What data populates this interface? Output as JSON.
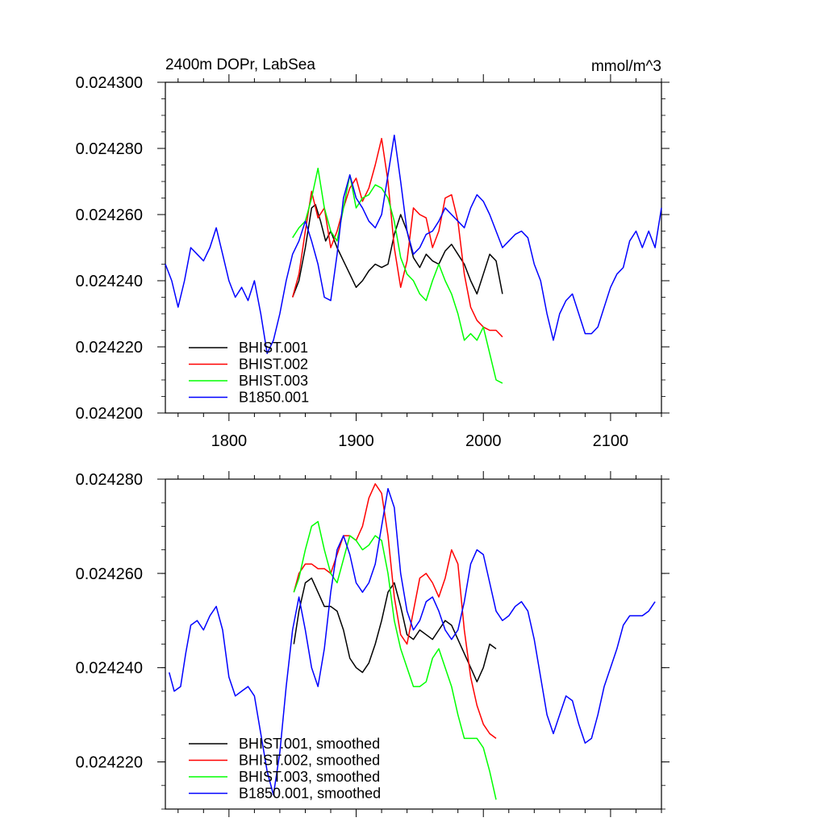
{
  "chart_data": [
    {
      "type": "line",
      "title": "2400m DOPr, LabSea",
      "units": "mmol/m^3",
      "xlim": [
        1750,
        2140
      ],
      "ylim": [
        0.0242,
        0.0243
      ],
      "x_ticks": [
        1800,
        1900,
        2000,
        2100
      ],
      "y_ticks": [
        0.0242,
        0.02422,
        0.02424,
        0.02426,
        0.02428,
        0.0243
      ],
      "y_tick_labels": [
        "0.024200",
        "0.024220",
        "0.024240",
        "0.024260",
        "0.024280",
        "0.024300"
      ],
      "x_tick_labels": [
        "1800",
        "1900",
        "2000",
        "2100"
      ],
      "legend_position": "bottom-left",
      "series": [
        {
          "name": "BHIST.001",
          "color": "#000000",
          "x": [
            1850,
            1855,
            1860,
            1865,
            1868,
            1872,
            1876,
            1880,
            1885,
            1890,
            1895,
            1900,
            1905,
            1910,
            1915,
            1920,
            1925,
            1930,
            1935,
            1940,
            1945,
            1950,
            1955,
            1960,
            1965,
            1970,
            1975,
            1980,
            1985,
            1990,
            1995,
            2000,
            2005,
            2010,
            2015
          ],
          "y": [
            0.024235,
            0.02424,
            0.02425,
            0.024262,
            0.024263,
            0.024258,
            0.024252,
            0.024255,
            0.02425,
            0.024246,
            0.024242,
            0.024238,
            0.02424,
            0.024243,
            0.024245,
            0.024244,
            0.024245,
            0.024254,
            0.02426,
            0.024255,
            0.024247,
            0.024244,
            0.024248,
            0.024246,
            0.024245,
            0.024249,
            0.024251,
            0.024248,
            0.024245,
            0.02424,
            0.024236,
            0.024242,
            0.024248,
            0.024246,
            0.024236
          ]
        },
        {
          "name": "BHIST.002",
          "color": "#ff0000",
          "x": [
            1850,
            1855,
            1860,
            1865,
            1870,
            1875,
            1880,
            1885,
            1890,
            1895,
            1900,
            1905,
            1910,
            1915,
            1920,
            1925,
            1930,
            1935,
            1940,
            1945,
            1950,
            1955,
            1960,
            1965,
            1970,
            1975,
            1980,
            1985,
            1990,
            1995,
            2000,
            2005,
            2010,
            2015
          ],
          "y": [
            0.024235,
            0.024242,
            0.024255,
            0.024267,
            0.024259,
            0.024262,
            0.02425,
            0.024255,
            0.024262,
            0.024268,
            0.024271,
            0.024264,
            0.024268,
            0.024275,
            0.024283,
            0.02427,
            0.02425,
            0.024238,
            0.024246,
            0.024262,
            0.02426,
            0.024259,
            0.02425,
            0.024255,
            0.024265,
            0.024266,
            0.024258,
            0.024242,
            0.024232,
            0.024228,
            0.024226,
            0.024225,
            0.024225,
            0.024223
          ]
        },
        {
          "name": "BHIST.003",
          "color": "#00ff00",
          "x": [
            1850,
            1855,
            1860,
            1865,
            1870,
            1875,
            1880,
            1885,
            1890,
            1895,
            1900,
            1905,
            1910,
            1915,
            1920,
            1925,
            1930,
            1935,
            1940,
            1945,
            1950,
            1955,
            1960,
            1965,
            1970,
            1975,
            1980,
            1985,
            1990,
            1995,
            2000,
            2005,
            2010,
            2015
          ],
          "y": [
            0.024253,
            0.024256,
            0.024258,
            0.024265,
            0.024274,
            0.024262,
            0.024255,
            0.024252,
            0.024262,
            0.024272,
            0.024262,
            0.024265,
            0.024266,
            0.024269,
            0.024268,
            0.024265,
            0.024258,
            0.024247,
            0.024242,
            0.02424,
            0.024236,
            0.024234,
            0.02424,
            0.024245,
            0.02424,
            0.024236,
            0.02423,
            0.024222,
            0.024224,
            0.024222,
            0.024226,
            0.024218,
            0.02421,
            0.024209
          ]
        },
        {
          "name": "B1850.001",
          "color": "#0000ff",
          "x": [
            1750,
            1755,
            1760,
            1765,
            1770,
            1775,
            1780,
            1785,
            1790,
            1795,
            1800,
            1805,
            1810,
            1815,
            1820,
            1825,
            1830,
            1835,
            1840,
            1845,
            1850,
            1855,
            1860,
            1865,
            1870,
            1875,
            1880,
            1885,
            1890,
            1895,
            1900,
            1905,
            1910,
            1915,
            1920,
            1925,
            1930,
            1935,
            1940,
            1945,
            1950,
            1955,
            1960,
            1965,
            1970,
            1975,
            1980,
            1985,
            1990,
            1995,
            2000,
            2005,
            2010,
            2015,
            2020,
            2025,
            2030,
            2035,
            2040,
            2045,
            2050,
            2055,
            2060,
            2065,
            2070,
            2075,
            2080,
            2085,
            2090,
            2095,
            2100,
            2105,
            2110,
            2115,
            2120,
            2125,
            2130,
            2135,
            2140
          ],
          "y": [
            0.024245,
            0.02424,
            0.024232,
            0.02424,
            0.02425,
            0.024248,
            0.024246,
            0.02425,
            0.024256,
            0.024248,
            0.02424,
            0.024235,
            0.024238,
            0.024234,
            0.02424,
            0.02423,
            0.024218,
            0.024222,
            0.02423,
            0.02424,
            0.024248,
            0.024252,
            0.024258,
            0.024252,
            0.024245,
            0.024235,
            0.024234,
            0.024248,
            0.024265,
            0.024272,
            0.024265,
            0.024262,
            0.024258,
            0.024256,
            0.02426,
            0.024272,
            0.024284,
            0.02427,
            0.024255,
            0.024248,
            0.02425,
            0.024254,
            0.024255,
            0.024258,
            0.024262,
            0.02426,
            0.024258,
            0.024256,
            0.024262,
            0.024266,
            0.024264,
            0.02426,
            0.024255,
            0.02425,
            0.024252,
            0.024254,
            0.024255,
            0.024253,
            0.024245,
            0.02424,
            0.02423,
            0.024222,
            0.02423,
            0.024234,
            0.024236,
            0.02423,
            0.024224,
            0.024224,
            0.024226,
            0.024232,
            0.024238,
            0.024242,
            0.024244,
            0.024252,
            0.024255,
            0.02425,
            0.024255,
            0.02425,
            0.024262
          ]
        }
      ]
    },
    {
      "type": "line",
      "title": "",
      "xlim": [
        1750,
        2140
      ],
      "ylim": [
        0.02421,
        0.02428
      ],
      "x_ticks": [
        1800,
        1900,
        2000,
        2100
      ],
      "y_ticks": [
        0.02422,
        0.02424,
        0.02426,
        0.02428
      ],
      "y_tick_labels": [
        "0.024220",
        "0.024240",
        "0.024260",
        "0.024280"
      ],
      "legend_position": "bottom-left",
      "series": [
        {
          "name": "BHIST.001, smoothed",
          "color": "#000000",
          "x": [
            1851,
            1855,
            1860,
            1865,
            1870,
            1875,
            1880,
            1885,
            1890,
            1895,
            1900,
            1905,
            1910,
            1915,
            1920,
            1925,
            1930,
            1935,
            1940,
            1945,
            1950,
            1955,
            1960,
            1965,
            1970,
            1975,
            1980,
            1985,
            1990,
            1995,
            2000,
            2005,
            2010
          ],
          "y": [
            0.024245,
            0.024252,
            0.024258,
            0.024259,
            0.024256,
            0.024253,
            0.024253,
            0.024252,
            0.024248,
            0.024242,
            0.02424,
            0.024239,
            0.024241,
            0.024245,
            0.02425,
            0.024256,
            0.024258,
            0.024253,
            0.024247,
            0.024246,
            0.024248,
            0.024247,
            0.024246,
            0.024248,
            0.02425,
            0.024249,
            0.024246,
            0.024243,
            0.02424,
            0.024237,
            0.02424,
            0.024245,
            0.024244
          ]
        },
        {
          "name": "BHIST.002, smoothed",
          "color": "#ff0000",
          "x": [
            1851,
            1855,
            1860,
            1865,
            1870,
            1875,
            1880,
            1885,
            1890,
            1895,
            1900,
            1905,
            1910,
            1915,
            1920,
            1925,
            1930,
            1935,
            1940,
            1945,
            1950,
            1955,
            1960,
            1965,
            1970,
            1975,
            1980,
            1985,
            1990,
            1995,
            2000,
            2005,
            2010
          ],
          "y": [
            0.024256,
            0.02426,
            0.024262,
            0.024262,
            0.024261,
            0.024261,
            0.02426,
            0.024264,
            0.024268,
            0.024268,
            0.024267,
            0.02427,
            0.024276,
            0.024279,
            0.024277,
            0.024268,
            0.024255,
            0.024247,
            0.024245,
            0.024252,
            0.024259,
            0.02426,
            0.024258,
            0.024255,
            0.024259,
            0.024265,
            0.024262,
            0.024248,
            0.024238,
            0.024232,
            0.024228,
            0.024226,
            0.024225
          ]
        },
        {
          "name": "BHIST.003, smoothed",
          "color": "#00ff00",
          "x": [
            1851,
            1855,
            1860,
            1865,
            1870,
            1875,
            1880,
            1885,
            1890,
            1895,
            1900,
            1905,
            1910,
            1915,
            1920,
            1925,
            1930,
            1935,
            1940,
            1945,
            1950,
            1955,
            1960,
            1965,
            1970,
            1975,
            1980,
            1985,
            1990,
            1995,
            2000,
            2005,
            2010
          ],
          "y": [
            0.024256,
            0.024259,
            0.024265,
            0.02427,
            0.024271,
            0.024265,
            0.02426,
            0.024258,
            0.024263,
            0.024268,
            0.024267,
            0.024265,
            0.024266,
            0.024268,
            0.024267,
            0.02426,
            0.02425,
            0.024244,
            0.02424,
            0.024236,
            0.024236,
            0.024237,
            0.024242,
            0.024244,
            0.02424,
            0.024236,
            0.02423,
            0.024225,
            0.024225,
            0.024225,
            0.024223,
            0.024218,
            0.024212
          ]
        },
        {
          "name": "B1850.001, smoothed",
          "color": "#0000ff",
          "x": [
            1753,
            1757,
            1762,
            1766,
            1770,
            1775,
            1780,
            1785,
            1790,
            1795,
            1800,
            1805,
            1810,
            1815,
            1820,
            1825,
            1830,
            1835,
            1840,
            1845,
            1850,
            1855,
            1860,
            1865,
            1870,
            1875,
            1880,
            1885,
            1890,
            1895,
            1900,
            1905,
            1910,
            1915,
            1920,
            1925,
            1930,
            1935,
            1940,
            1945,
            1950,
            1955,
            1960,
            1965,
            1970,
            1975,
            1980,
            1985,
            1990,
            1995,
            2000,
            2005,
            2010,
            2015,
            2020,
            2025,
            2030,
            2035,
            2040,
            2045,
            2050,
            2055,
            2060,
            2065,
            2070,
            2075,
            2080,
            2085,
            2090,
            2095,
            2100,
            2105,
            2110,
            2115,
            2120,
            2125,
            2130,
            2135
          ],
          "y": [
            0.024239,
            0.024235,
            0.024236,
            0.024243,
            0.024249,
            0.02425,
            0.024248,
            0.024251,
            0.024253,
            0.024248,
            0.024238,
            0.024234,
            0.024235,
            0.024236,
            0.024234,
            0.024226,
            0.024218,
            0.024213,
            0.024222,
            0.024236,
            0.024248,
            0.024255,
            0.024248,
            0.02424,
            0.024236,
            0.024244,
            0.024256,
            0.024265,
            0.024268,
            0.024264,
            0.024258,
            0.024256,
            0.024258,
            0.024262,
            0.02427,
            0.024278,
            0.024274,
            0.02426,
            0.024252,
            0.024248,
            0.02425,
            0.024254,
            0.024255,
            0.024252,
            0.024248,
            0.024246,
            0.024248,
            0.024254,
            0.024262,
            0.024265,
            0.024264,
            0.024258,
            0.024252,
            0.02425,
            0.024251,
            0.024253,
            0.024254,
            0.024252,
            0.024246,
            0.024238,
            0.02423,
            0.024226,
            0.02423,
            0.024234,
            0.024233,
            0.024228,
            0.024224,
            0.024225,
            0.02423,
            0.024236,
            0.02424,
            0.024244,
            0.024249,
            0.024251,
            0.024251,
            0.024251,
            0.024252,
            0.024254
          ]
        }
      ]
    }
  ]
}
